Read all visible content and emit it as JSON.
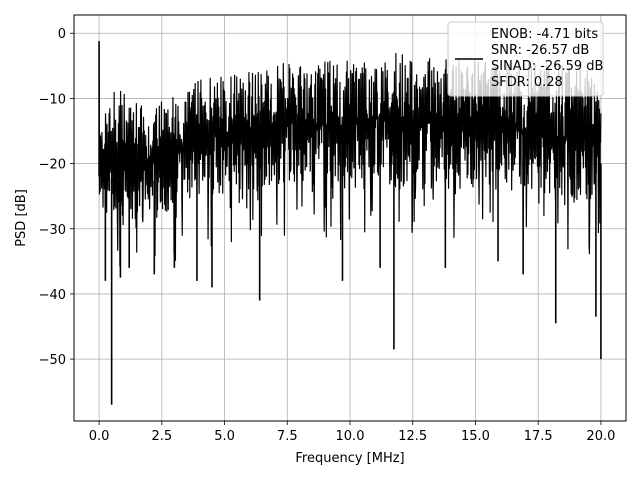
{
  "chart_data": {
    "type": "line",
    "title": "",
    "xlabel": "Frequency [MHz]",
    "ylabel": "PSD [dB]",
    "xlim": [
      -1.0,
      21.0
    ],
    "ylim": [
      -59.5,
      2.8
    ],
    "xticks": [
      0,
      2.5,
      5,
      7.5,
      10,
      12.5,
      15,
      17.5,
      20
    ],
    "xtick_labels": [
      "0.0",
      "2.5",
      "5.0",
      "7.5",
      "10.0",
      "12.5",
      "15.0",
      "17.5",
      "20.0"
    ],
    "yticks": [
      0,
      -10,
      -20,
      -30,
      -40,
      -50
    ],
    "ytick_labels": [
      "0",
      "−10",
      "−20",
      "−30",
      "−40",
      "−50"
    ],
    "grid": true,
    "legend_position": "upper right",
    "line_color": "#000000",
    "series": [
      {
        "name": "ENOB: -4.71 bits\nSNR: -26.57 dB\nSINAD: -26.59 dB\nSFDR: 0.28",
        "x_range": [
          0,
          20
        ],
        "band": {
          "x": [
            0,
            2,
            4,
            6,
            8,
            10,
            12,
            14,
            16,
            18,
            20
          ],
          "upper": [
            -7,
            -11,
            -7,
            -6,
            -4,
            -4,
            -3,
            -4,
            -4,
            -5,
            -5
          ],
          "lower": [
            -28,
            -29,
            -25,
            -24,
            -23,
            -24,
            -24,
            -24,
            -24,
            -26,
            -26
          ]
        },
        "spikes": [
          {
            "x": 0.0,
            "y": -1.2
          },
          {
            "x": 0.25,
            "y": -38
          },
          {
            "x": 0.5,
            "y": -57
          },
          {
            "x": 0.85,
            "y": -37.5
          },
          {
            "x": 1.2,
            "y": -36
          },
          {
            "x": 2.2,
            "y": -37
          },
          {
            "x": 3.0,
            "y": -36
          },
          {
            "x": 3.9,
            "y": -38
          },
          {
            "x": 4.5,
            "y": -39
          },
          {
            "x": 6.4,
            "y": -41
          },
          {
            "x": 9.7,
            "y": -38
          },
          {
            "x": 11.2,
            "y": -36
          },
          {
            "x": 11.75,
            "y": -48.5
          },
          {
            "x": 13.8,
            "y": -36
          },
          {
            "x": 15.9,
            "y": -35
          },
          {
            "x": 16.9,
            "y": -37
          },
          {
            "x": 18.2,
            "y": -44.5
          },
          {
            "x": 19.8,
            "y": -43.5
          },
          {
            "x": 20.0,
            "y": -50
          }
        ]
      }
    ]
  }
}
